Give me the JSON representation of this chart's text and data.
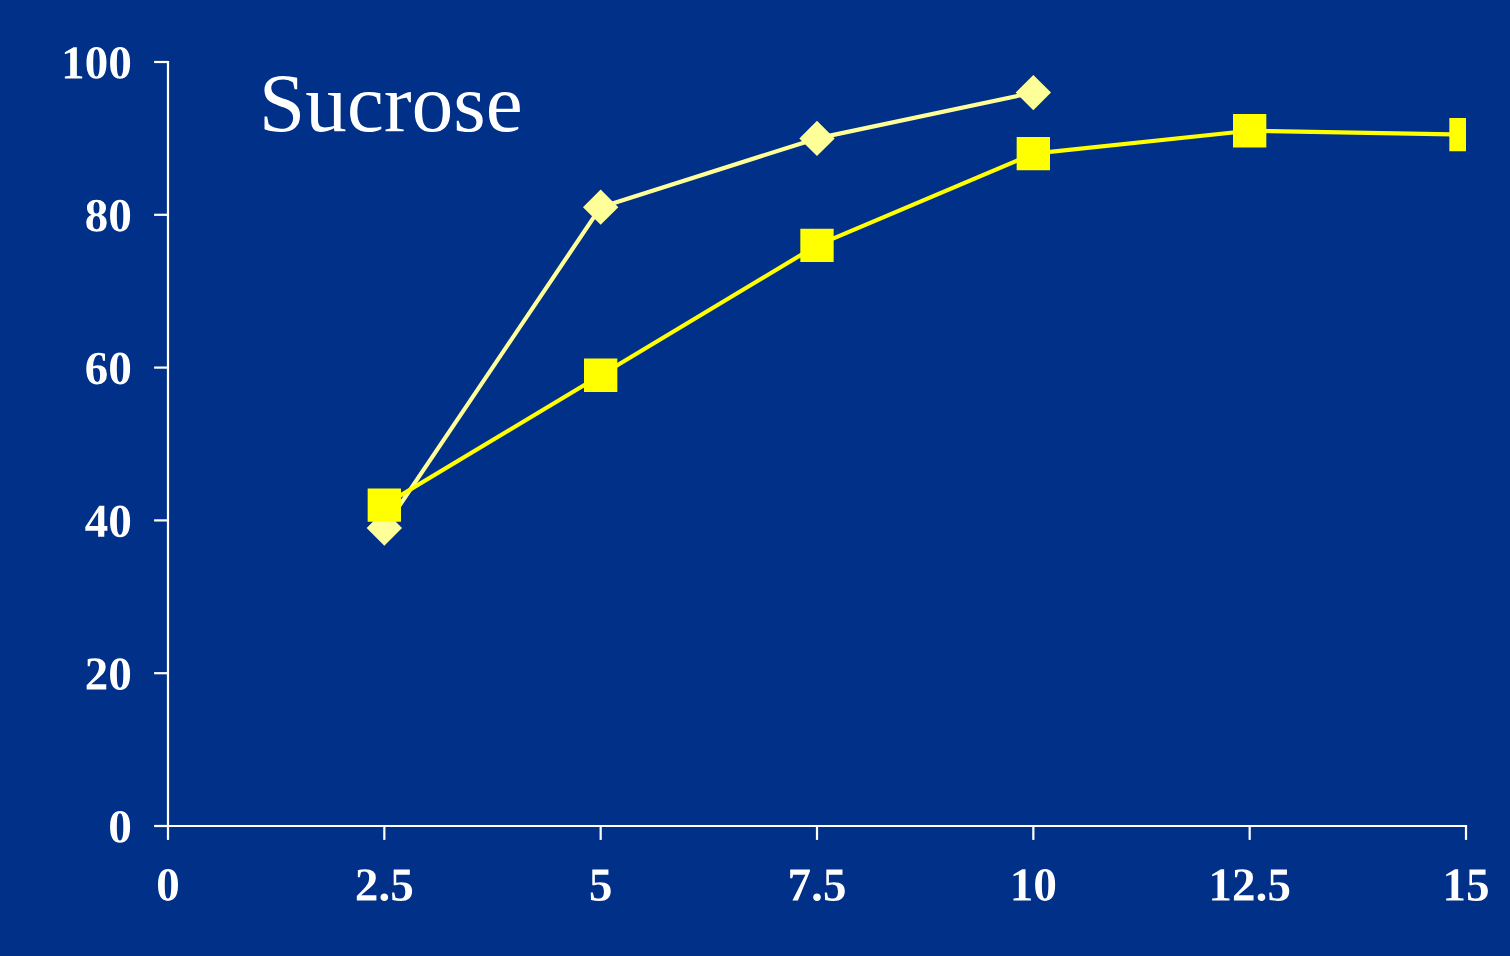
{
  "chart_data": {
    "type": "line",
    "title": "Sucrose",
    "series": [
      {
        "color": "#ffff99",
        "marker": "diamond",
        "x": [
          2.5,
          5,
          7.5,
          10
        ],
        "values": [
          39,
          81,
          90,
          96
        ]
      },
      {
        "color": "#ffff00",
        "marker": "square",
        "x": [
          2.5,
          5,
          7.5,
          10,
          12.5,
          15
        ],
        "values": [
          42,
          59,
          76,
          88,
          91,
          90.5
        ]
      }
    ],
    "xlim": [
      0,
      15
    ],
    "xticks": [
      0,
      {
        "value": 2.5,
        "label": "2.5"
      },
      5,
      {
        "value": 7.5,
        "label": "7.5"
      },
      10,
      {
        "value": 12.5,
        "label": "12.5"
      },
      15
    ],
    "ylim": [
      0,
      100
    ],
    "yticks": [
      0,
      20,
      40,
      60,
      80,
      100
    ],
    "grid": false,
    "legend": false
  }
}
